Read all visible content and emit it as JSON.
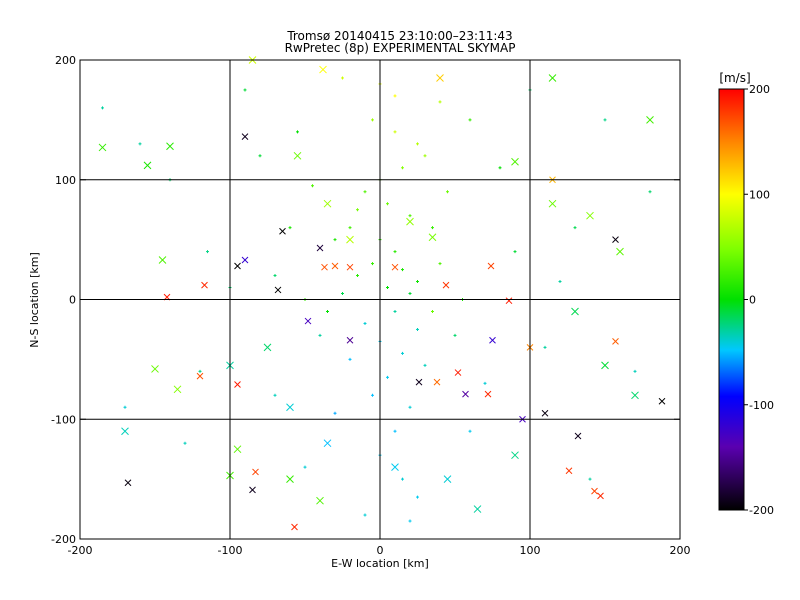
{
  "chart_data": {
    "type": "scatter",
    "title": "Tromsø 20140415 23:10:00–23:11:43",
    "subtitle": "RwPretec (8p) EXPERIMENTAL SKYMAP",
    "xlabel": "E-W location [km]",
    "ylabel": "N-S location [km]",
    "xlim": [
      -200,
      200
    ],
    "ylim": [
      -200,
      200
    ],
    "x_ticks": [
      "-200",
      "-100",
      "0",
      "100",
      "200"
    ],
    "y_ticks": [
      "-200",
      "-100",
      "0",
      "100",
      "200"
    ],
    "grid": true,
    "colorbar": {
      "label": "[m/s]",
      "min": -200,
      "max": 200,
      "ticks": [
        "200",
        "100",
        "0",
        "-100",
        "-200"
      ]
    },
    "series": [
      {
        "marker": "plus",
        "points": [
          [
            -5,
            150,
            60
          ],
          [
            10,
            140,
            80
          ],
          [
            25,
            130,
            70
          ],
          [
            30,
            120,
            60
          ],
          [
            15,
            110,
            50
          ],
          [
            0,
            100,
            40
          ],
          [
            -10,
            90,
            30
          ],
          [
            5,
            80,
            40
          ],
          [
            20,
            70,
            30
          ],
          [
            35,
            60,
            20
          ],
          [
            -20,
            60,
            25
          ],
          [
            -30,
            50,
            10
          ],
          [
            0,
            50,
            20
          ],
          [
            10,
            40,
            15
          ],
          [
            -5,
            30,
            20
          ],
          [
            15,
            25,
            10
          ],
          [
            25,
            15,
            5
          ],
          [
            -15,
            20,
            15
          ],
          [
            5,
            10,
            0
          ],
          [
            20,
            5,
            -10
          ],
          [
            -25,
            5,
            -15
          ],
          [
            10,
            -10,
            -30
          ],
          [
            -10,
            -20,
            -40
          ],
          [
            25,
            -25,
            -35
          ],
          [
            0,
            -35,
            -45
          ],
          [
            15,
            -45,
            -40
          ],
          [
            -20,
            -50,
            -50
          ],
          [
            30,
            -55,
            -35
          ],
          [
            5,
            -65,
            -45
          ],
          [
            -5,
            -80,
            -50
          ],
          [
            20,
            -90,
            -40
          ],
          [
            -30,
            -95,
            -55
          ],
          [
            10,
            -110,
            -50
          ],
          [
            0,
            -130,
            -45
          ],
          [
            15,
            -150,
            -40
          ],
          [
            25,
            -165,
            -45
          ],
          [
            -55,
            140,
            0
          ],
          [
            -80,
            120,
            -10
          ],
          [
            60,
            150,
            20
          ],
          [
            80,
            110,
            0
          ],
          [
            -60,
            60,
            10
          ],
          [
            -70,
            20,
            -20
          ],
          [
            -40,
            -30,
            -30
          ],
          [
            50,
            -30,
            -20
          ],
          [
            70,
            -70,
            -40
          ],
          [
            -70,
            -80,
            -35
          ],
          [
            60,
            -110,
            -45
          ],
          [
            -50,
            -140,
            -40
          ],
          [
            90,
            40,
            -10
          ],
          [
            -100,
            10,
            -20
          ],
          [
            110,
            -40,
            -30
          ],
          [
            -120,
            -60,
            -25
          ],
          [
            130,
            60,
            -15
          ],
          [
            -140,
            100,
            -20
          ],
          [
            150,
            150,
            -25
          ],
          [
            -160,
            130,
            -30
          ],
          [
            170,
            -60,
            -35
          ],
          [
            -170,
            -90,
            -40
          ],
          [
            180,
            90,
            -20
          ],
          [
            -185,
            160,
            -30
          ],
          [
            45,
            90,
            40
          ],
          [
            -45,
            95,
            30
          ],
          [
            40,
            30,
            30
          ],
          [
            -50,
            0,
            20
          ],
          [
            55,
            0,
            10
          ],
          [
            -35,
            -10,
            0
          ],
          [
            35,
            -10,
            40
          ],
          [
            -15,
            75,
            45
          ],
          [
            0,
            180,
            90
          ],
          [
            10,
            170,
            100
          ],
          [
            -25,
            185,
            80
          ],
          [
            40,
            165,
            70
          ],
          [
            -90,
            175,
            -10
          ],
          [
            100,
            175,
            -20
          ],
          [
            -115,
            40,
            -25
          ],
          [
            120,
            15,
            -30
          ],
          [
            -130,
            -120,
            -35
          ],
          [
            140,
            -150,
            -30
          ],
          [
            -10,
            -180,
            -40
          ],
          [
            20,
            -185,
            -45
          ]
        ]
      },
      {
        "marker": "cross",
        "points": [
          [
            -142,
            2,
            190
          ],
          [
            -117,
            12,
            185
          ],
          [
            -95,
            -71,
            190
          ],
          [
            -83,
            -144,
            175
          ],
          [
            -57,
            -190,
            185
          ],
          [
            -65,
            57,
            -200
          ],
          [
            -95,
            28,
            -200
          ],
          [
            -68,
            8,
            -200
          ],
          [
            -85,
            -159,
            -190
          ],
          [
            -168,
            -153,
            -195
          ],
          [
            -120,
            -64,
            170
          ],
          [
            44,
            12,
            180
          ],
          [
            38,
            -69,
            160
          ],
          [
            52,
            -61,
            190
          ],
          [
            72,
            -79,
            185
          ],
          [
            74,
            28,
            175
          ],
          [
            86,
            -1,
            190
          ],
          [
            126,
            -143,
            180
          ],
          [
            143,
            -160,
            175
          ],
          [
            147,
            -164,
            185
          ],
          [
            157,
            -35,
            165
          ],
          [
            26,
            -69,
            -190
          ],
          [
            110,
            -95,
            -195
          ],
          [
            132,
            -114,
            -190
          ],
          [
            188,
            -85,
            -200
          ],
          [
            157,
            50,
            -195
          ],
          [
            -48,
            -18,
            -130
          ],
          [
            -20,
            -34,
            -150
          ],
          [
            -90,
            33,
            -120
          ],
          [
            10,
            27,
            170
          ],
          [
            -30,
            28,
            165
          ],
          [
            -20,
            27,
            175
          ],
          [
            -37,
            27,
            170
          ],
          [
            57,
            -79,
            -145
          ],
          [
            75,
            -34,
            -120
          ],
          [
            95,
            -100,
            -130
          ],
          [
            -40,
            43,
            -180
          ],
          [
            -90,
            136,
            -190
          ],
          [
            100,
            -40,
            150
          ],
          [
            115,
            100,
            130
          ]
        ]
      },
      {
        "marker": "x-large",
        "points": [
          [
            -185,
            127,
            20
          ],
          [
            -155,
            112,
            10
          ],
          [
            -140,
            128,
            15
          ],
          [
            -145,
            33,
            30
          ],
          [
            -135,
            -75,
            50
          ],
          [
            -150,
            -58,
            40
          ],
          [
            -95,
            -125,
            35
          ],
          [
            -100,
            -147,
            25
          ],
          [
            -60,
            -150,
            20
          ],
          [
            -40,
            -168,
            30
          ],
          [
            -55,
            120,
            40
          ],
          [
            -35,
            80,
            60
          ],
          [
            -20,
            50,
            70
          ],
          [
            20,
            65,
            55
          ],
          [
            35,
            52,
            45
          ],
          [
            90,
            115,
            30
          ],
          [
            115,
            80,
            40
          ],
          [
            140,
            70,
            50
          ],
          [
            160,
            40,
            35
          ],
          [
            180,
            150,
            25
          ],
          [
            115,
            185,
            20
          ],
          [
            40,
            185,
            120
          ],
          [
            -38,
            192,
            100
          ],
          [
            -85,
            200,
            80
          ],
          [
            -100,
            -55,
            -30
          ],
          [
            -75,
            -40,
            -20
          ],
          [
            -60,
            -90,
            -40
          ],
          [
            -35,
            -120,
            -50
          ],
          [
            10,
            -140,
            -45
          ],
          [
            45,
            -150,
            -40
          ],
          [
            65,
            -175,
            -30
          ],
          [
            90,
            -130,
            -25
          ],
          [
            130,
            -10,
            -15
          ],
          [
            150,
            -55,
            -10
          ],
          [
            170,
            -80,
            -20
          ],
          [
            -170,
            -110,
            -35
          ]
        ]
      }
    ]
  }
}
